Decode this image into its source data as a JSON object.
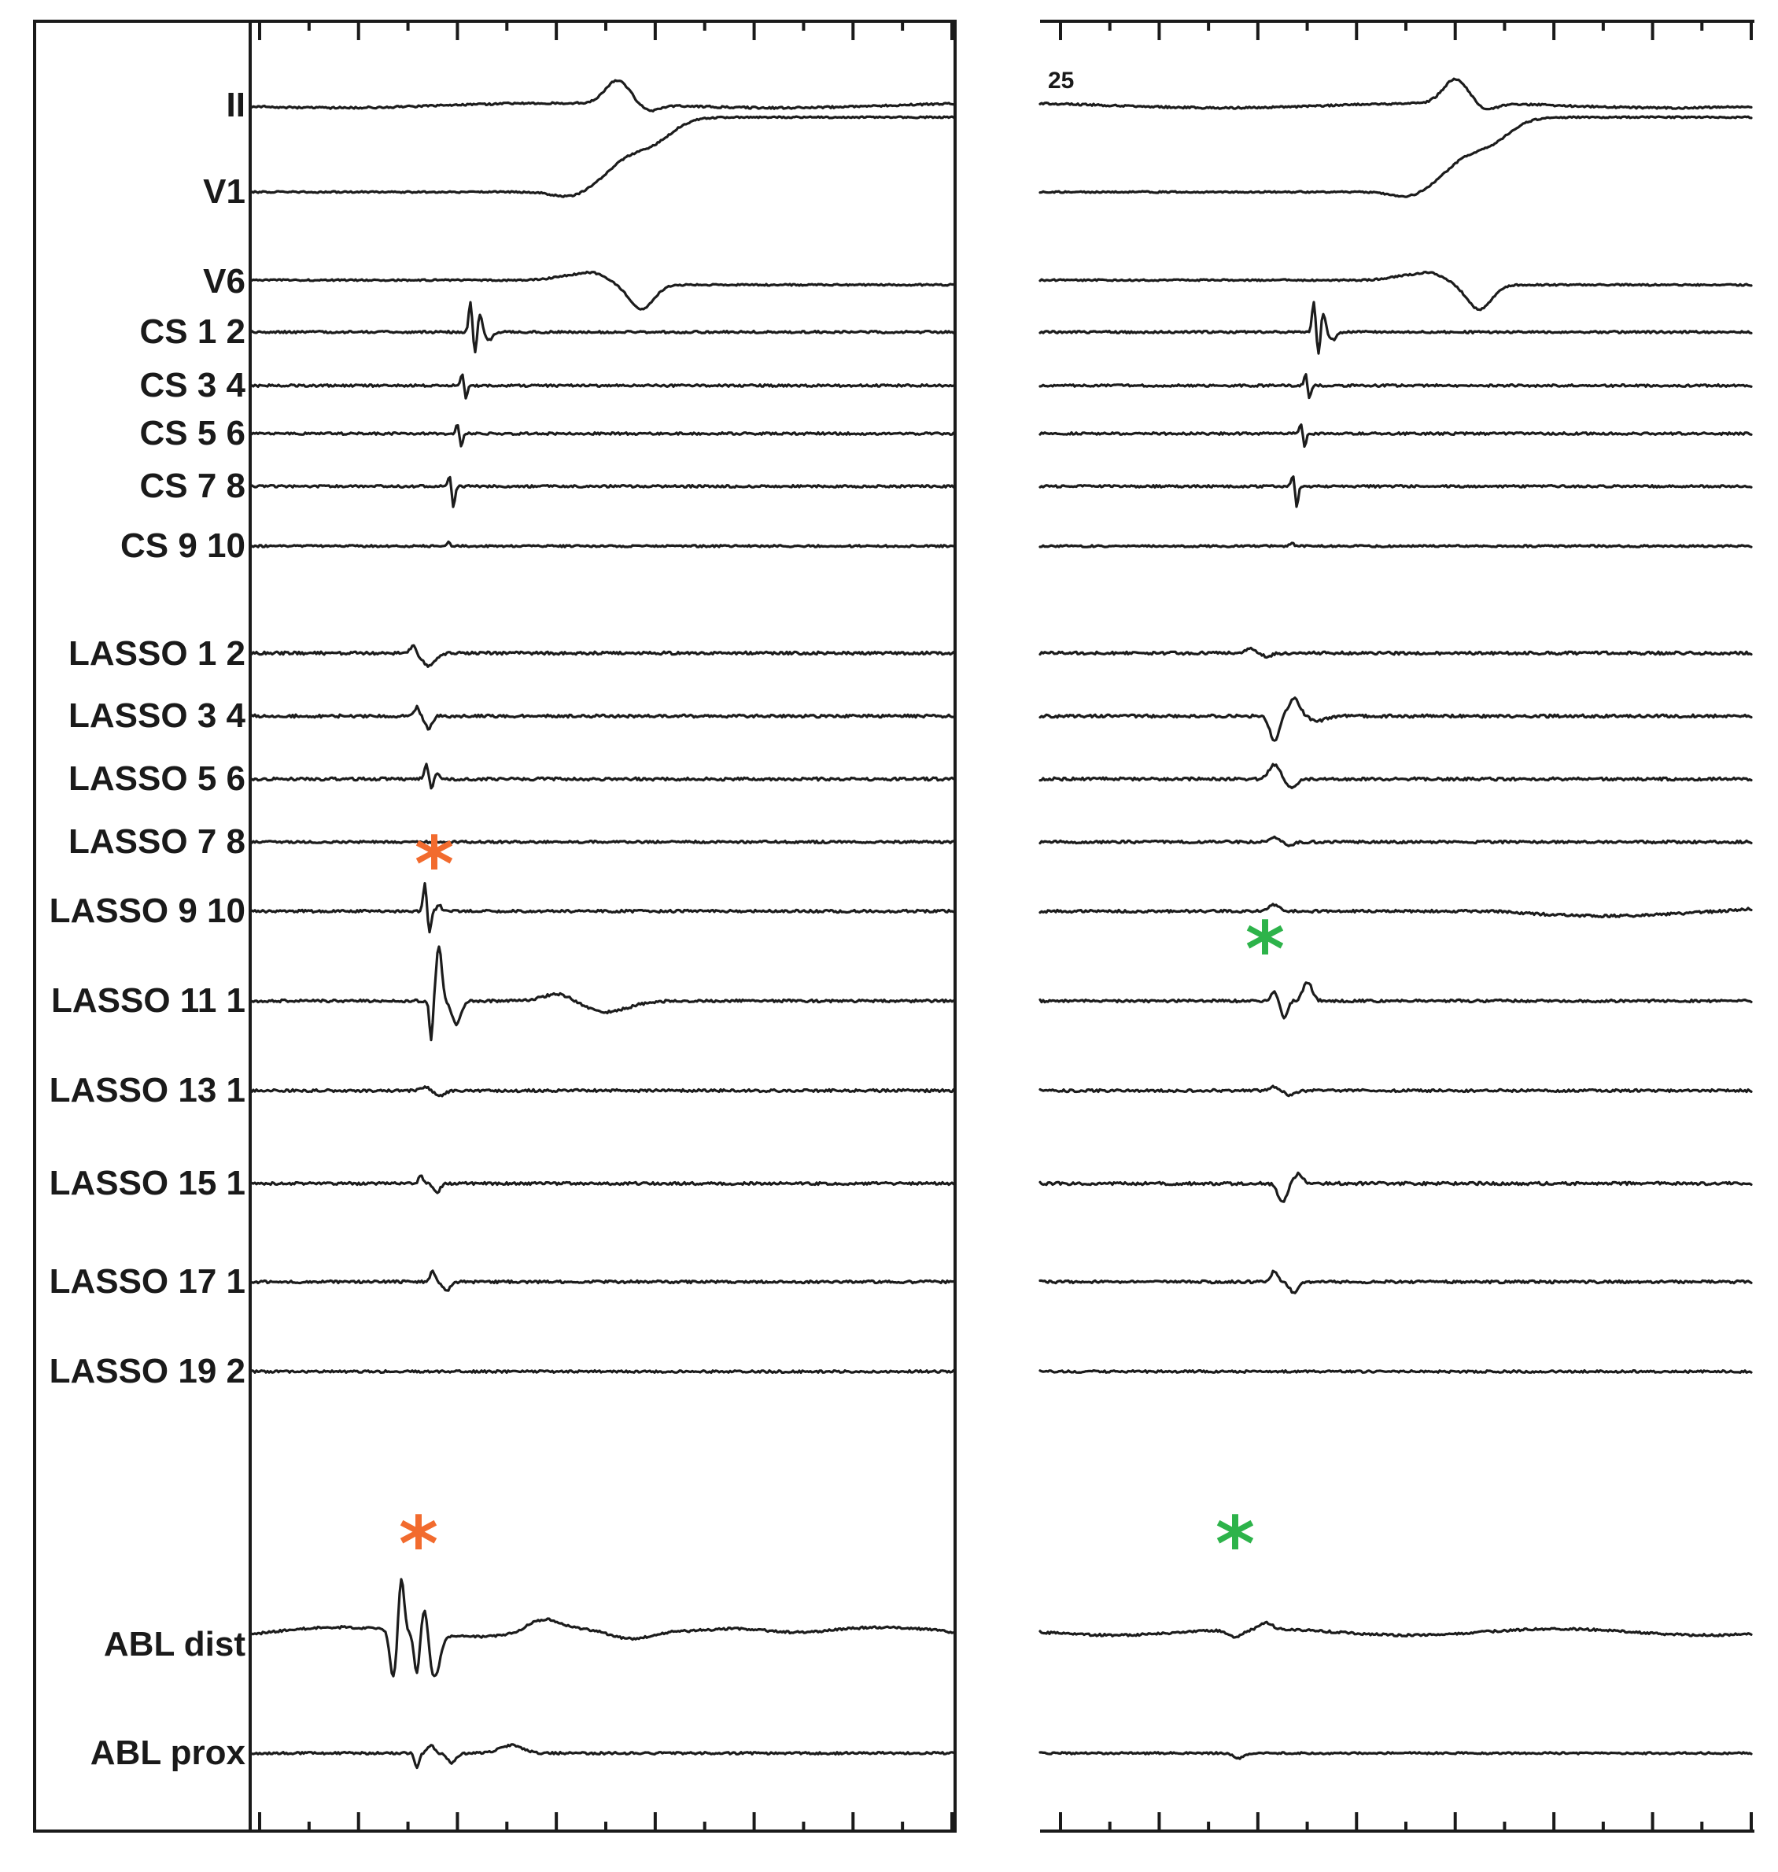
{
  "leads": [
    "II",
    "V1",
    "V6",
    "CS 1 2",
    "CS 3 4",
    "CS 5 6",
    "CS 7 8",
    "CS 9 10",
    "LASSO 1 2",
    "LASSO 3 4",
    "LASSO 5 6",
    "LASSO 7 8",
    "LASSO 9 10",
    "LASSO 11 1",
    "LASSO 13 1",
    "LASSO 15 1",
    "LASSO 17 1",
    "LASSO 19 2",
    "ABL dist",
    "ABL prox"
  ],
  "right_panel_label": "25",
  "asterisk_symbol": "*",
  "colors": {
    "trace": "#1c1c1c",
    "asterisk_left": "#f26b2e",
    "asterisk_right": "#2db34a"
  }
}
